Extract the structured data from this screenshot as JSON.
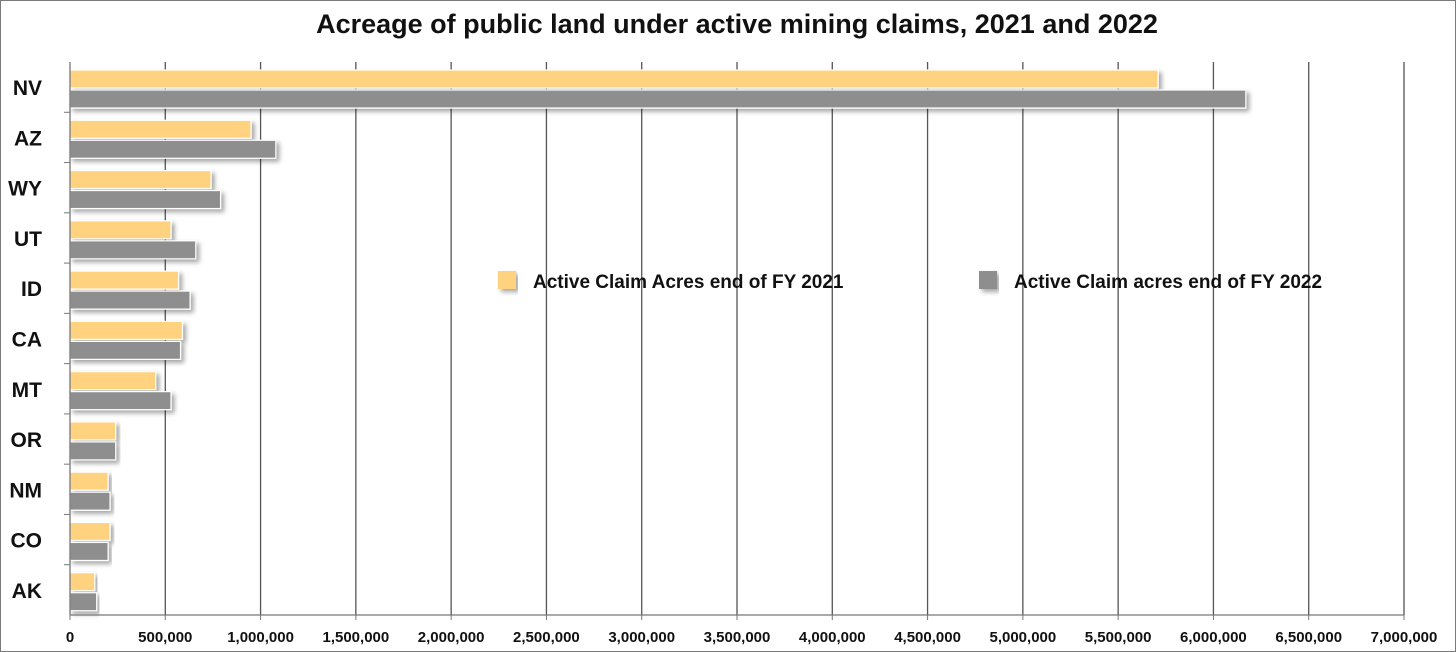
{
  "chart_data": {
    "type": "bar",
    "orientation": "horizontal",
    "title": "Acreage of public land under active mining claims, 2021 and 2022",
    "xlabel": "",
    "ylabel": "",
    "categories": [
      "NV",
      "AZ",
      "WY",
      "UT",
      "ID",
      "CA",
      "MT",
      "OR",
      "NM",
      "CO",
      "AK"
    ],
    "series": [
      {
        "name": "Active Claim Acres end of FY 2021",
        "color": "#FFD27F",
        "values": [
          5710000,
          950000,
          740000,
          530000,
          570000,
          590000,
          450000,
          240000,
          200000,
          210000,
          130000
        ]
      },
      {
        "name": "Active Claim acres end of FY 2022",
        "color": "#8E8E8E",
        "values": [
          6170000,
          1080000,
          790000,
          660000,
          630000,
          580000,
          530000,
          240000,
          210000,
          200000,
          140000
        ]
      }
    ],
    "xlim": [
      0,
      7000000
    ],
    "xticks": [
      0,
      500000,
      1000000,
      1500000,
      2000000,
      2500000,
      3000000,
      3500000,
      4000000,
      4500000,
      5000000,
      5500000,
      6000000,
      6500000,
      7000000
    ],
    "xtick_labels": [
      "0",
      "500,000",
      "1,000,000",
      "1,500,000",
      "2,000,000",
      "2,500,000",
      "3,000,000",
      "3,500,000",
      "4,000,000",
      "4,500,000",
      "5,000,000",
      "5,500,000",
      "6,000,000",
      "6,500,000",
      "7,000,000"
    ],
    "grid": "vertical",
    "legend": "center-right"
  }
}
